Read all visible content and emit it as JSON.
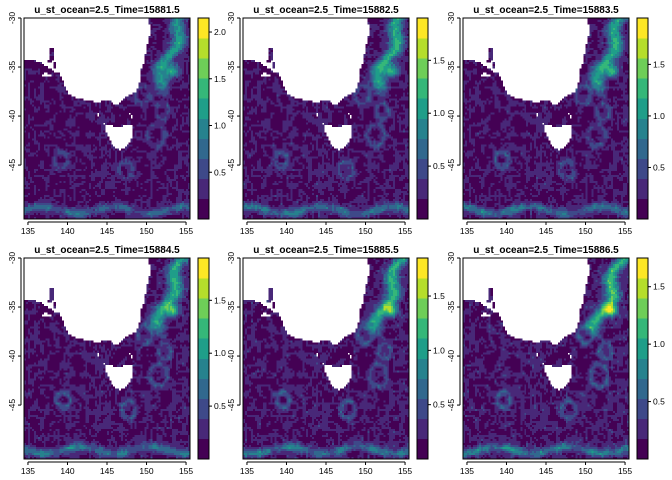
{
  "chart_data": {
    "type": "heatmap",
    "colormap": "viridis",
    "x_ticks": [
      135,
      140,
      145,
      150,
      155
    ],
    "y_ticks": [
      -30,
      -35,
      -40,
      -45
    ],
    "x_range": [
      134.5,
      155.5
    ],
    "y_range": [
      -50.5,
      -30
    ],
    "panels": [
      {
        "title": "u_st_ocean=2.5_Time=15881.5",
        "legend_max": 2.15,
        "legend_ticks": [
          0.5,
          1.0,
          1.5,
          2.0
        ],
        "legend_tick_labels": [
          "0.5",
          "1.0",
          "1.5",
          "2.0"
        ]
      },
      {
        "title": "u_st_ocean=2.5_Time=15882.5",
        "legend_max": 1.9,
        "legend_ticks": [
          0.5,
          1.0,
          1.5
        ],
        "legend_tick_labels": [
          "0.5",
          "1.0",
          "1.5"
        ]
      },
      {
        "title": "u_st_ocean=2.5_Time=15883.5",
        "legend_max": 1.95,
        "legend_ticks": [
          0.5,
          1.0,
          1.5
        ],
        "legend_tick_labels": [
          "0.5",
          "1.0",
          "1.5"
        ]
      },
      {
        "title": "u_st_ocean=2.5_Time=15884.5",
        "legend_max": 1.9,
        "legend_ticks": [
          0.5,
          1.0,
          1.5
        ],
        "legend_tick_labels": [
          "0.5",
          "1.0",
          "1.5"
        ]
      },
      {
        "title": "u_st_ocean=2.5_Time=15885.5",
        "legend_max": 1.85,
        "legend_ticks": [
          0.5,
          1.0,
          1.5
        ],
        "legend_tick_labels": [
          "0.5",
          "1.0",
          "1.5"
        ]
      },
      {
        "title": "u_st_ocean=2.5_Time=15886.5",
        "legend_max": 1.75,
        "legend_ticks": [
          0.5,
          1.0,
          1.5
        ],
        "legend_tick_labels": [
          "0.5",
          "1.0",
          "1.5"
        ]
      }
    ],
    "colors": {
      "viridis": [
        "#440154",
        "#482878",
        "#3e4989",
        "#31688e",
        "#26828e",
        "#1f9e89",
        "#35b779",
        "#6ece58",
        "#b5de2b",
        "#fde725"
      ],
      "land": "#ffffff"
    }
  }
}
